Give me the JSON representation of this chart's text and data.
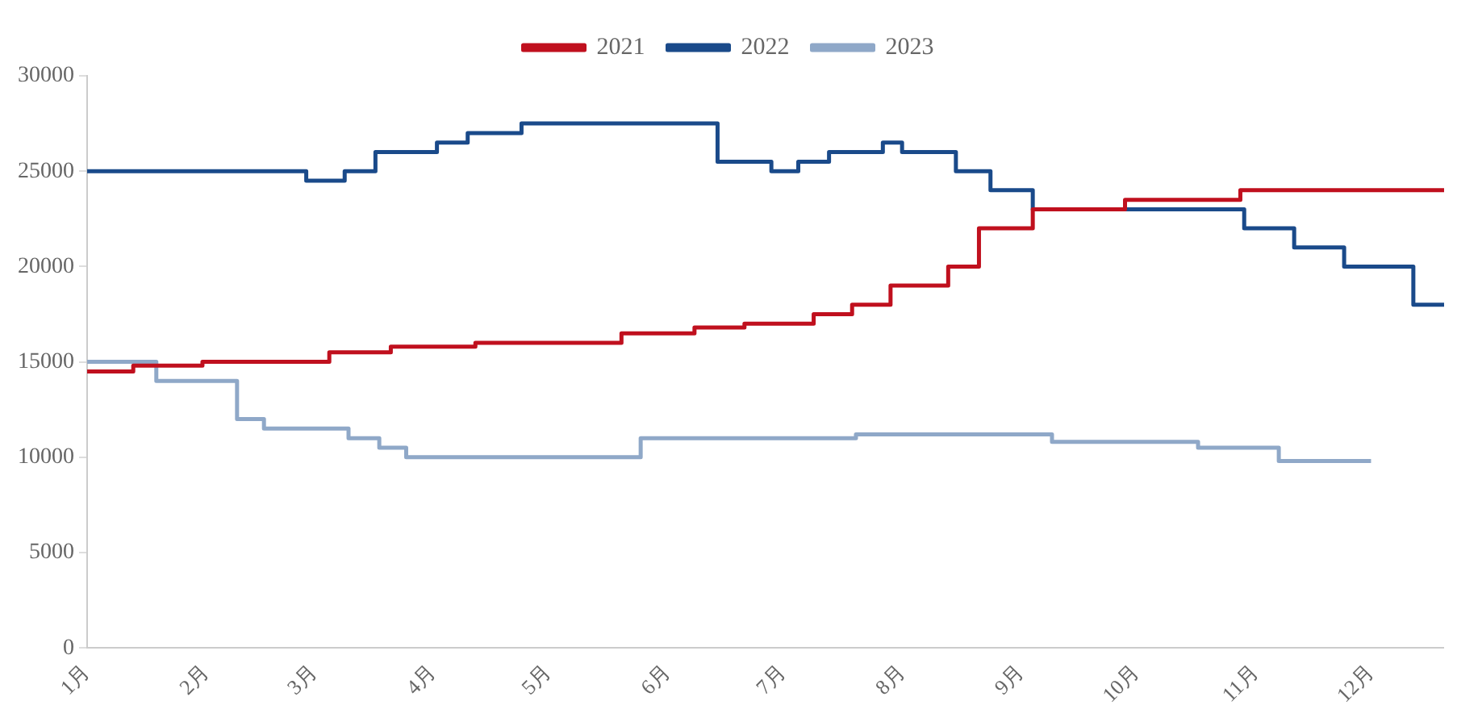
{
  "chart_data": {
    "type": "step",
    "xlim": [
      "--01-01",
      "--12-20"
    ],
    "xticks": [
      {
        "value": "--01-01",
        "label": "1月"
      },
      {
        "value": "--02-01",
        "label": "2月"
      },
      {
        "value": "--03-01",
        "label": "3月"
      },
      {
        "value": "--04-01",
        "label": "4月"
      },
      {
        "value": "--05-01",
        "label": "5月"
      },
      {
        "value": "--06-01",
        "label": "6月"
      },
      {
        "value": "--07-01",
        "label": "7月"
      },
      {
        "value": "--08-01",
        "label": "8月"
      },
      {
        "value": "--09-01",
        "label": "9月"
      },
      {
        "value": "--10-01",
        "label": "10月"
      },
      {
        "value": "--11-01",
        "label": "11月"
      },
      {
        "value": "--12-01",
        "label": "12月"
      }
    ],
    "ylim": [
      0,
      30000
    ],
    "yticks": [
      0,
      5000,
      10000,
      15000,
      20000,
      25000,
      30000
    ],
    "grid": false,
    "legend": "top",
    "marker": "none",
    "line_style": "solid",
    "series": [
      {
        "name": "2021",
        "color": "#c0101e",
        "x": [
          "--01-01",
          "--01-13",
          "--01-31",
          "--03-05",
          "--03-21",
          "--04-12",
          "--05-20",
          "--06-08",
          "--06-21",
          "--07-09",
          "--07-19",
          "--07-29",
          "--08-13",
          "--08-21",
          "--09-04",
          "--09-28",
          "--10-28",
          "--12-20"
        ],
        "values": [
          14500,
          14800,
          15000,
          15500,
          15800,
          16000,
          16500,
          16800,
          17000,
          17500,
          18000,
          19000,
          20000,
          22000,
          23000,
          23500,
          24000,
          24000
        ]
      },
      {
        "name": "2022",
        "color": "#1a4a8a",
        "x": [
          "--01-01",
          "--02-27",
          "--03-09",
          "--03-17",
          "--04-02",
          "--04-10",
          "--04-24",
          "--06-14",
          "--06-28",
          "--07-05",
          "--07-13",
          "--07-27",
          "--08-01",
          "--08-15",
          "--08-24",
          "--09-04",
          "--10-29",
          "--11-11",
          "--11-24",
          "--12-12",
          "--12-20"
        ],
        "values": [
          25000,
          24500,
          25000,
          26000,
          26500,
          27000,
          27500,
          25500,
          25000,
          25500,
          26000,
          26500,
          26000,
          25000,
          24000,
          23000,
          22000,
          21000,
          20000,
          18000,
          18000
        ]
      },
      {
        "name": "2023",
        "color": "#8fa8c8",
        "x": [
          "--01-01",
          "--01-19",
          "--02-09",
          "--02-16",
          "--03-10",
          "--03-18",
          "--03-25",
          "--05-25",
          "--07-20",
          "--09-09",
          "--10-17",
          "--11-07",
          "--12-01"
        ],
        "values": [
          15000,
          14000,
          12000,
          11500,
          11000,
          10500,
          10000,
          11000,
          11200,
          10800,
          10500,
          9800,
          9800
        ]
      }
    ]
  }
}
